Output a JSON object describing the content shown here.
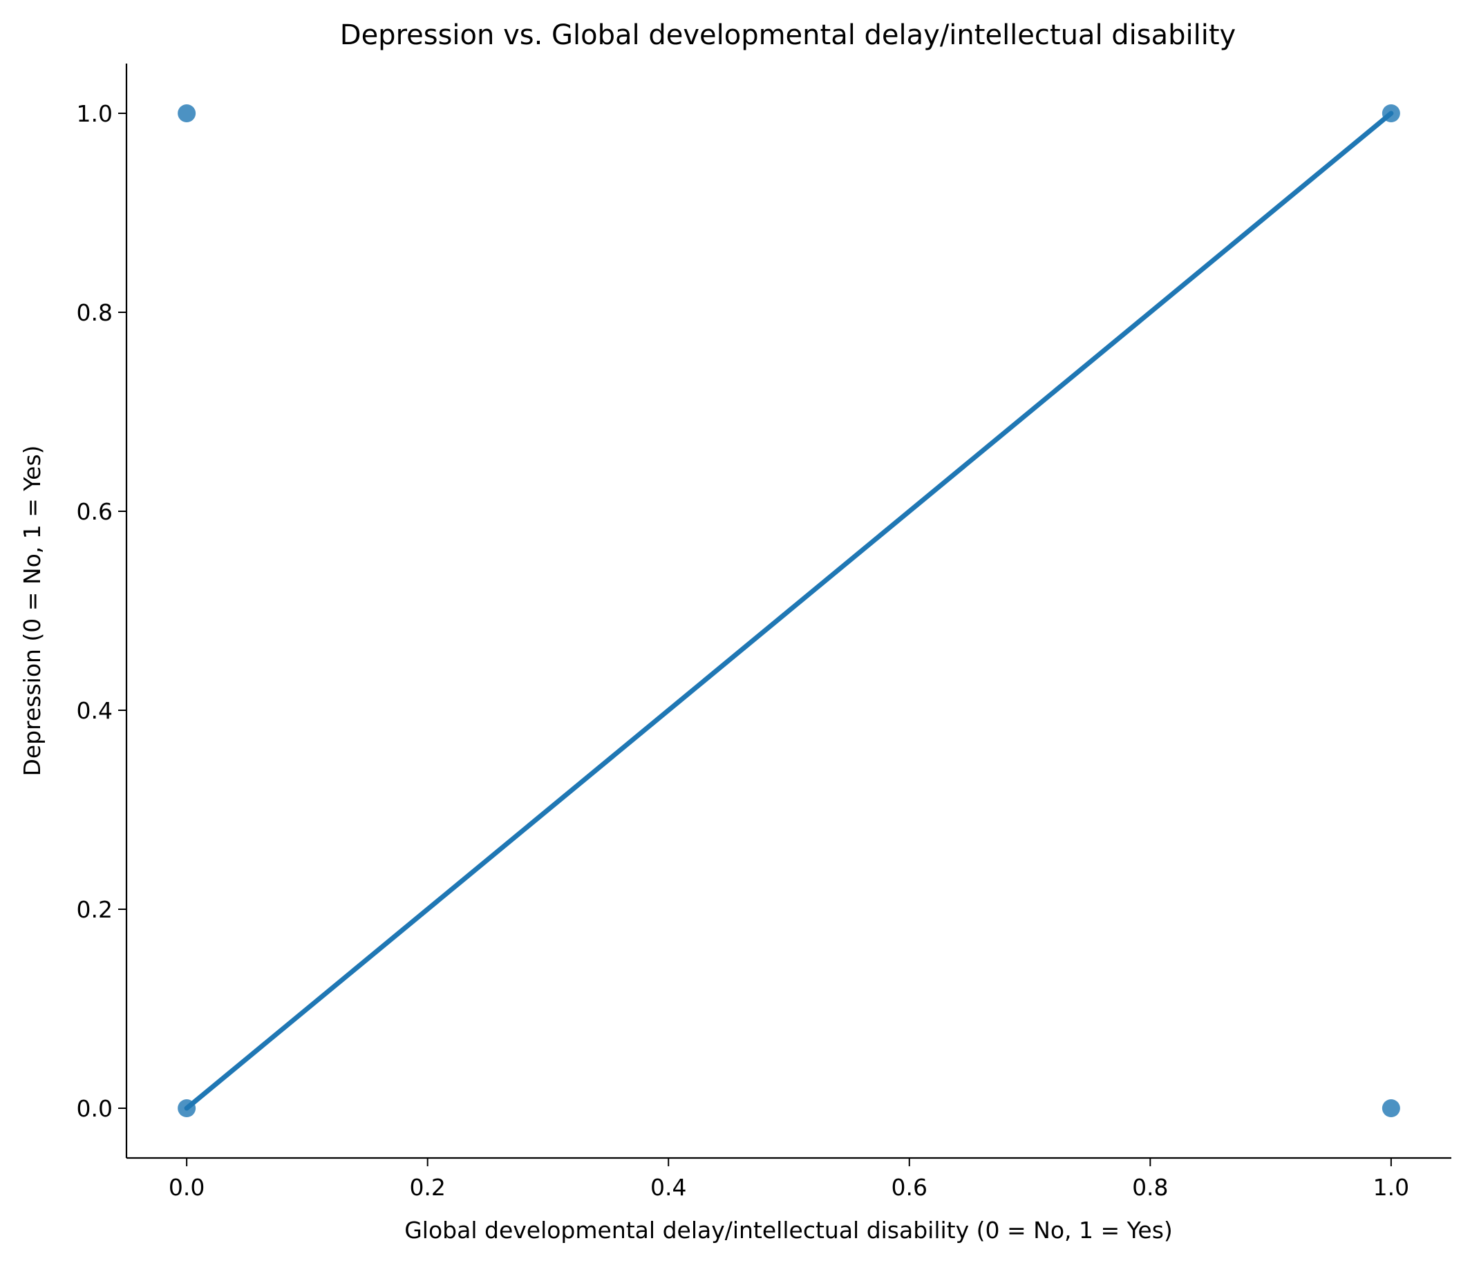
{
  "chart_data": {
    "type": "scatter",
    "title": "Depression vs. Global developmental delay/intellectual disability",
    "xlabel": "Global developmental delay/intellectual disability (0 = No, 1 = Yes)",
    "ylabel": "Depression (0 = No, 1 = Yes)",
    "xlim": [
      -0.05,
      1.05
    ],
    "ylim": [
      -0.05,
      1.05
    ],
    "xticks": [
      0.0,
      0.2,
      0.4,
      0.6,
      0.8,
      1.0
    ],
    "xtick_labels": [
      "0.0",
      "0.2",
      "0.4",
      "0.6",
      "0.8",
      "1.0"
    ],
    "yticks": [
      0.0,
      0.2,
      0.4,
      0.6,
      0.8,
      1.0
    ],
    "ytick_labels": [
      "0.0",
      "0.2",
      "0.4",
      "0.6",
      "0.8",
      "1.0"
    ],
    "grid": false,
    "points": [
      {
        "x": 0,
        "y": 0
      },
      {
        "x": 0,
        "y": 1
      },
      {
        "x": 1,
        "y": 0
      },
      {
        "x": 1,
        "y": 1
      }
    ],
    "regression_line": {
      "x": [
        0,
        1
      ],
      "y": [
        0,
        1
      ]
    },
    "color": "#1f77b4"
  }
}
